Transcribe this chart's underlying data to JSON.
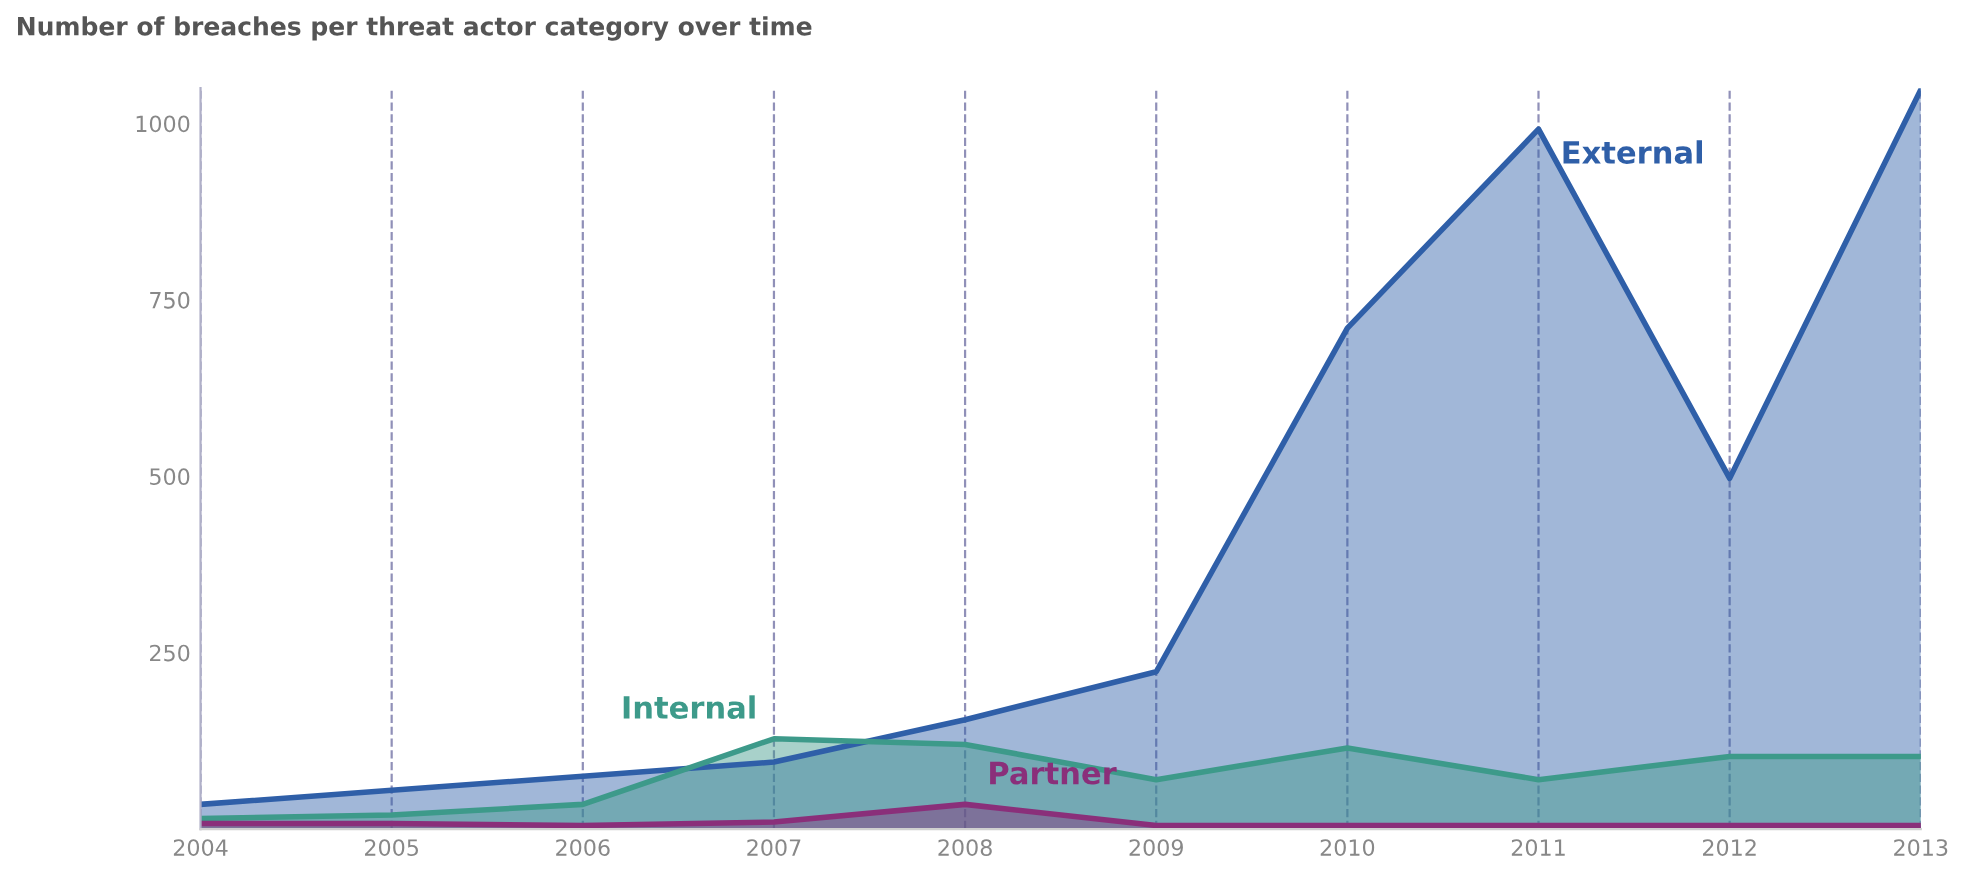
{
  "chart_data": {
    "type": "area",
    "title": "Number of breaches per threat actor category over time",
    "x": [
      2004,
      2005,
      2006,
      2007,
      2008,
      2009,
      2010,
      2011,
      2012,
      2013
    ],
    "series": [
      {
        "name": "External",
        "color": "#2f5fa8",
        "values": [
          35,
          55,
          75,
          95,
          155,
          223,
          710,
          992,
          497,
          1048
        ]
      },
      {
        "name": "Internal",
        "color": "#3d9a8a",
        "values": [
          15,
          20,
          35,
          128,
          120,
          70,
          115,
          70,
          103,
          103
        ]
      },
      {
        "name": "Partner",
        "color": "#8a2f7a",
        "values": [
          8,
          8,
          5,
          10,
          35,
          5,
          5,
          5,
          5,
          5
        ]
      }
    ],
    "xlim": [
      2004,
      2013
    ],
    "xticks": [
      2004,
      2005,
      2006,
      2007,
      2008,
      2009,
      2010,
      2011,
      2012,
      2013
    ],
    "ylim": [
      0,
      1050
    ],
    "yticks": [
      250,
      500,
      750,
      1000
    ],
    "grid": "x",
    "legend": false
  }
}
